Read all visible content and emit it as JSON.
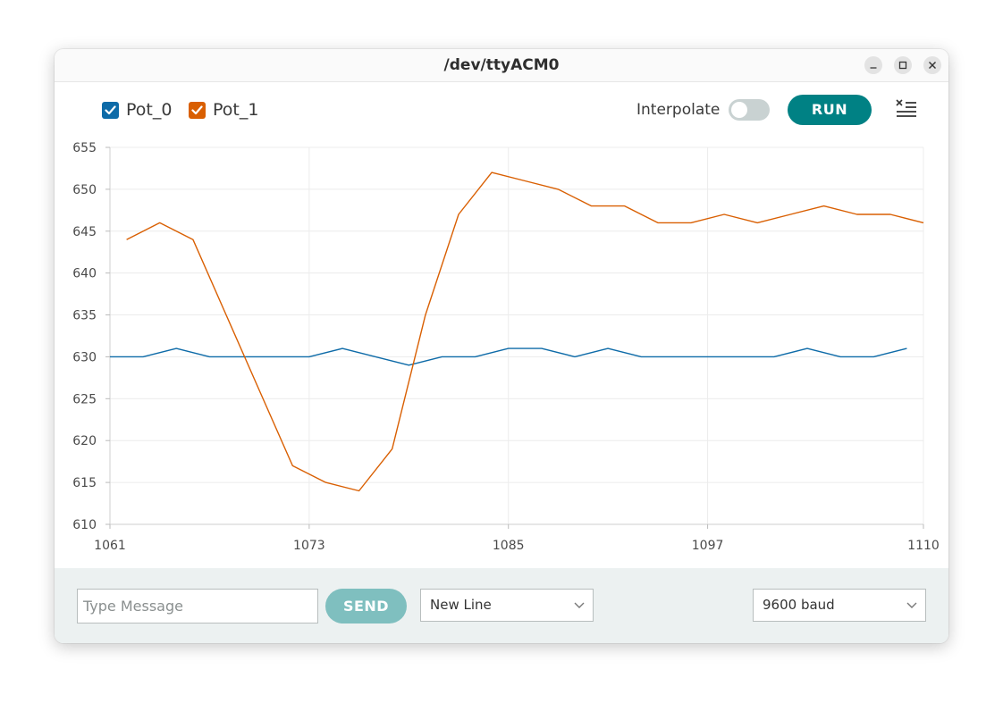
{
  "window": {
    "title": "/dev/ttyACM0"
  },
  "toolbar": {
    "legend": [
      {
        "label": "Pot_0",
        "color": "#0e6ba8",
        "checked": true
      },
      {
        "label": "Pot_1",
        "color": "#d95f02",
        "checked": true
      }
    ],
    "interpolate_label": "Interpolate",
    "interpolate_on": false,
    "run_label": "RUN"
  },
  "footer": {
    "message_placeholder": "Type Message",
    "send_label": "SEND",
    "line_ending": "New Line",
    "baud": "9600 baud"
  },
  "chart_data": {
    "type": "line",
    "title": "",
    "xlabel": "",
    "ylabel": "",
    "xlim": [
      1061,
      1110
    ],
    "ylim": [
      610,
      655
    ],
    "xticks": [
      1061,
      1073,
      1085,
      1097,
      1110
    ],
    "yticks": [
      610,
      615,
      620,
      625,
      630,
      635,
      640,
      645,
      650,
      655
    ],
    "grid": true,
    "legend_position": "top-left",
    "series": [
      {
        "name": "Pot_0",
        "color": "#0e6ba8",
        "x": [
          1061,
          1063,
          1065,
          1067,
          1069,
          1071,
          1073,
          1075,
          1077,
          1079,
          1081,
          1083,
          1085,
          1087,
          1089,
          1091,
          1093,
          1095,
          1097,
          1099,
          1101,
          1103,
          1105,
          1107,
          1109
        ],
        "y": [
          630,
          630,
          631,
          630,
          630,
          630,
          630,
          631,
          630,
          629,
          630,
          630,
          631,
          631,
          630,
          631,
          630,
          630,
          630,
          630,
          630,
          631,
          630,
          630,
          631
        ]
      },
      {
        "name": "Pot_1",
        "color": "#d95f02",
        "x": [
          1062,
          1064,
          1066,
          1068,
          1070,
          1072,
          1074,
          1076,
          1078,
          1080,
          1082,
          1084,
          1086,
          1088,
          1090,
          1092,
          1094,
          1096,
          1098,
          1100,
          1102,
          1104,
          1106,
          1108,
          1110
        ],
        "y": [
          644,
          646,
          644,
          635,
          626,
          617,
          615,
          614,
          619,
          635,
          647,
          652,
          651,
          650,
          648,
          648,
          646,
          646,
          647,
          646,
          647,
          648,
          647,
          647,
          646
        ]
      }
    ]
  }
}
